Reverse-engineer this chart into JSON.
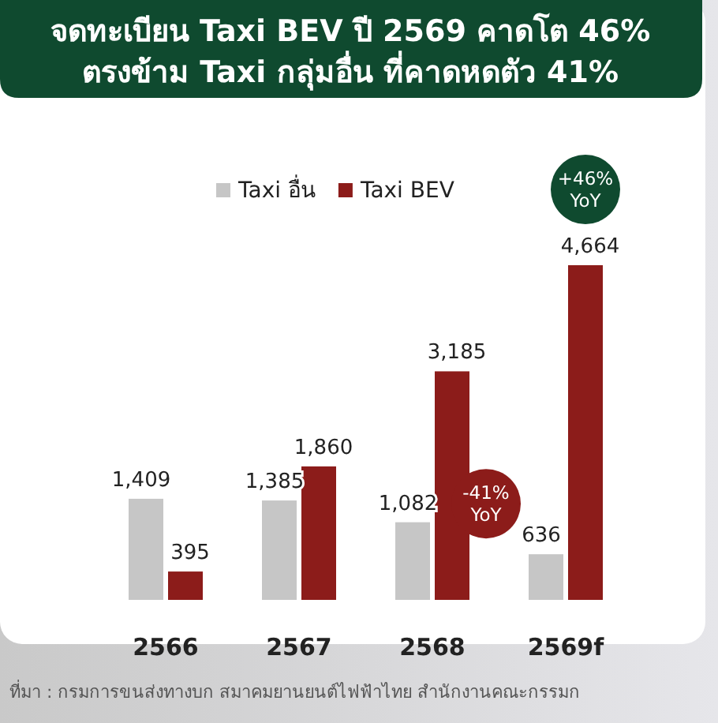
{
  "chart_data": {
    "type": "bar",
    "title": "จดทะเบียน Taxi BEV ปี 2569 คาดโต 46%",
    "subtitle": "ตรงข้าม Taxi กลุ่มอื่น ที่คาดหดตัว 41%",
    "categories": [
      "2566",
      "2567",
      "2568",
      "2569f"
    ],
    "series": [
      {
        "name": "Taxi อื่น",
        "color": "#c6c6c6",
        "values": [
          1409,
          1385,
          1082,
          636
        ],
        "value_labels": [
          "1,409",
          "1,385",
          "1,082",
          "636"
        ]
      },
      {
        "name": "Taxi BEV",
        "color": "#8c1c1a",
        "values": [
          395,
          1860,
          3185,
          4664
        ],
        "value_labels": [
          "395",
          "1,860",
          "3,185",
          "4,664"
        ]
      }
    ],
    "legend": "top",
    "annotations": [
      "+46% YoY",
      "-41% YoY",
      "ที่มา : กรมการขนส่งทางบก สมาคมยานยนต์ไฟฟ้าไทย สำนักงานคณะกรรมก"
    ]
  }
}
